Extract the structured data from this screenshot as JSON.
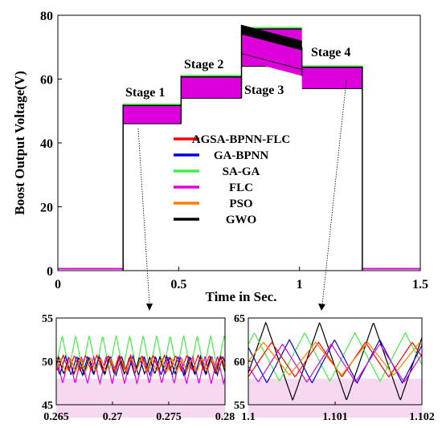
{
  "colors": {
    "AGSA-BPNN-FLC": "#ff0000",
    "GA-BPNN": "#0000dd",
    "SA-GA": "#44ee44",
    "FLC": "#dd00dd",
    "PSO": "#ff7f00",
    "GWO": "#000000"
  },
  "chart_data": [
    {
      "type": "line",
      "xlabel": "Time in Sec.",
      "ylabel": "Boost Output Voltage(V)",
      "xlim": [
        0,
        1.5
      ],
      "ylim": [
        0,
        80
      ],
      "xticks": [
        "0",
        "0.5",
        "1",
        "1.5"
      ],
      "yticks": [
        "0",
        "20",
        "40",
        "60",
        "80"
      ],
      "grid": false,
      "legend": "center",
      "legend_entries": [
        "AGSA-BPNN-FLC",
        "GA-BPNN",
        "SA-GA",
        "FLC",
        "PSO",
        "GWO"
      ],
      "stages": [
        {
          "label": "Stage 1",
          "t_start": 0.27,
          "t_end": 0.51,
          "v_low": 46,
          "v_high": 52
        },
        {
          "label": "Stage 2",
          "t_start": 0.51,
          "t_end": 0.76,
          "v_low": 54,
          "v_high": 61
        },
        {
          "label": "Stage 3",
          "t_start": 0.76,
          "t_end": 1.01,
          "v_low": 64,
          "v_high": 76
        },
        {
          "label": "Stage 4",
          "t_start": 1.01,
          "t_end": 1.26,
          "v_low": 57,
          "v_high": 64
        }
      ]
    },
    {
      "type": "line",
      "xlim": [
        0.265,
        0.28
      ],
      "ylim": [
        45,
        55
      ],
      "xticks": [
        "0.265",
        "0.27",
        "0.275",
        "0.28"
      ],
      "yticks": [
        "45",
        "50",
        "55"
      ],
      "series": [
        {
          "name": "SA-GA",
          "mean": 51,
          "amp": 2,
          "period": 0.0012
        },
        {
          "name": "GWO",
          "mean": 49.5,
          "amp": 1,
          "period": 0.0009
        },
        {
          "name": "FLC",
          "mean": 49,
          "amp": 1.6,
          "period": 0.0011
        },
        {
          "name": "GA-BPNN",
          "mean": 49.5,
          "amp": 1.1,
          "period": 0.001
        },
        {
          "name": "AGSA-BPNN-FLC",
          "mean": 49.8,
          "amp": 0.9,
          "period": 0.001
        },
        {
          "name": "PSO",
          "mean": 49.6,
          "amp": 0.8,
          "period": 0.0009
        }
      ]
    },
    {
      "type": "line",
      "xlim": [
        1.1,
        1.102
      ],
      "ylim": [
        55,
        65
      ],
      "xticks": [
        "1.1",
        "1.101",
        "1.102"
      ],
      "yticks": [
        "55",
        "60",
        "65"
      ],
      "series": [
        {
          "name": "GWO",
          "mean": 60,
          "amp": 4.5,
          "period": 0.00062
        },
        {
          "name": "SA-GA",
          "mean": 60.5,
          "amp": 2.8,
          "period": 0.00058
        },
        {
          "name": "GA-BPNN",
          "mean": 60,
          "amp": 2.5,
          "period": 0.00052
        },
        {
          "name": "FLC",
          "mean": 59.8,
          "amp": 2.2,
          "period": 0.00056
        },
        {
          "name": "AGSA-BPNN-FLC",
          "mean": 60.2,
          "amp": 2.0,
          "period": 0.00054
        },
        {
          "name": "PSO",
          "mean": 60.3,
          "amp": 1.9,
          "period": 0.0006
        }
      ]
    }
  ]
}
